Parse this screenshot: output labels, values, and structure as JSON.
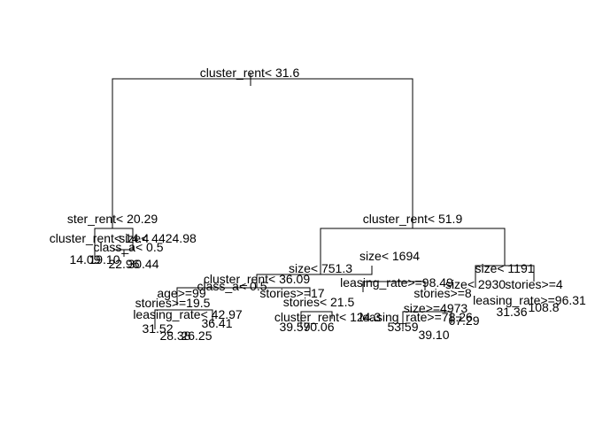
{
  "nodes": [
    {
      "label": "cluster_rent< 31.6"
    },
    {
      "label": "ster_rent< 20.29"
    },
    {
      "label": "cluster_rent< 51.9"
    },
    {
      "label": "cluster_rent< 14.4"
    },
    {
      "label": "size< 4424.98"
    },
    {
      "label": "class_a< 0.5"
    },
    {
      "label": "size< 751.3"
    },
    {
      "label": "size< 1694"
    },
    {
      "label": "size< 1191"
    },
    {
      "label": "cluster_rent< 36.09"
    },
    {
      "label": "leasing_rate>=98.49"
    },
    {
      "label": "size< 2930"
    },
    {
      "label": "stories>=4"
    },
    {
      "label": "class_a< 0.5"
    },
    {
      "label": "age>=99"
    },
    {
      "label": "stories>=17"
    },
    {
      "label": "stories< 21.5"
    },
    {
      "label": "stories>=8"
    },
    {
      "label": "leasing_rate>=96.31"
    },
    {
      "label": "stories>=19.5"
    },
    {
      "label": "size>=4973"
    },
    {
      "label": "leasing_rate>=78.26"
    },
    {
      "label": "leasing_rate< 42.97"
    },
    {
      "label": "cluster_rent< 124.3"
    }
  ],
  "leaves": [
    {
      "label": "14.09"
    },
    {
      "label": "19.10"
    },
    {
      "label": "22.96"
    },
    {
      "label": "30.44"
    },
    {
      "label": "31.52"
    },
    {
      "label": "28.38"
    },
    {
      "label": "26.25"
    },
    {
      "label": "36.41"
    },
    {
      "label": "39.59"
    },
    {
      "label": "70.06"
    },
    {
      "label": "53.59"
    },
    {
      "label": "39.10"
    },
    {
      "label": "67.29"
    },
    {
      "label": "31.36"
    },
    {
      "label": "108.8"
    }
  ]
}
